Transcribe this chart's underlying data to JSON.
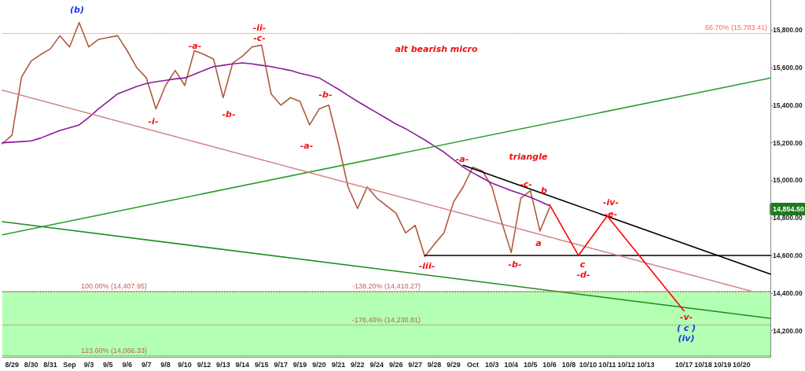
{
  "chart_data": {
    "type": "line",
    "categories": [
      null,
      "8/29",
      null,
      "8/30",
      null,
      "8/31",
      null,
      "Sep",
      null,
      "9/3",
      null,
      "9/5",
      null,
      "9/6",
      null,
      "9/7",
      null,
      "9/8",
      null,
      "9/10",
      null,
      "9/12",
      null,
      "9/13",
      null,
      "9/14",
      null,
      "9/15",
      null,
      "9/17",
      null,
      "9/19",
      null,
      "9/20",
      null,
      "9/21",
      null,
      "9/22",
      null,
      "9/24",
      null,
      "9/26",
      null,
      "9/27",
      null,
      "9/28",
      null,
      "9/29",
      null,
      "Oct",
      null,
      "10/3",
      null,
      "10/4",
      null,
      "10/5",
      null,
      "10/6",
      null,
      "10/8",
      null,
      "10/10",
      null,
      "10/11",
      null,
      "10/12",
      null,
      "10/13",
      null,
      null,
      null,
      "10/17",
      null,
      "10/18",
      null,
      "10/19",
      null,
      "10/20",
      null,
      null,
      null
    ],
    "ylim": [
      14060,
      15960
    ],
    "yticks": [
      {
        "value": 14200,
        "label": "14,200.00"
      },
      {
        "value": 14400,
        "label": "14,400.00"
      },
      {
        "value": 14600,
        "label": "14,600.00"
      },
      {
        "value": 14800,
        "label": "14,800.00"
      },
      {
        "value": 15000,
        "label": "15,000.00"
      },
      {
        "value": 15200,
        "label": "15,200.00"
      },
      {
        "value": 15400,
        "label": "15,400.00"
      },
      {
        "value": 15600,
        "label": "15,600.00"
      },
      {
        "value": 15800,
        "label": "15,800.00"
      }
    ],
    "grid": false,
    "marker": "none",
    "series": [
      {
        "color": "#b05a3c",
        "values": [
          15195,
          15240,
          15550,
          15635,
          15670,
          15700,
          15770,
          15710,
          15840,
          15710,
          15750,
          15760,
          15770,
          15690,
          15600,
          15545,
          15380,
          15505,
          15585,
          15505,
          15690,
          15670,
          15645,
          15440,
          15625,
          15660,
          15710,
          15720,
          15460,
          15400,
          15440,
          15420,
          15295,
          15380,
          15400,
          15195,
          14965,
          14850,
          14965,
          14905,
          14865,
          14825,
          14720,
          14760,
          14595,
          14660,
          14720,
          14885,
          14965,
          15070,
          15050,
          14965,
          14780,
          14615,
          14905,
          14945,
          14730,
          14855,
          null,
          null,
          null,
          null,
          null,
          null,
          null,
          null,
          null,
          null,
          null,
          null,
          null,
          null,
          null,
          null,
          null,
          null,
          null,
          null,
          null,
          null,
          null
        ]
      },
      {
        "color": "#8b1a9b",
        "values": [
          15200,
          15203,
          15206,
          15210,
          15225,
          15245,
          15265,
          15280,
          15295,
          15335,
          15380,
          15420,
          15460,
          15480,
          15500,
          15515,
          15525,
          15532,
          15540,
          15545,
          15565,
          15585,
          15605,
          15612,
          15620,
          15625,
          15620,
          15612,
          15605,
          15595,
          15585,
          15570,
          15558,
          15545,
          15515,
          15485,
          15452,
          15420,
          15390,
          15360,
          15330,
          15300,
          15275,
          15245,
          15215,
          15182,
          15150,
          15110,
          15070,
          15040,
          15012,
          14985,
          14965,
          14945,
          14928,
          14910,
          14888,
          14865,
          null,
          null,
          null,
          null,
          null,
          null,
          null,
          null,
          null,
          null,
          null,
          null,
          null,
          null,
          null,
          null,
          null,
          null,
          null,
          null,
          null,
          null,
          null
        ]
      },
      {
        "color": "#2e9e2e",
        "values": [
          14710,
          null,
          null,
          null,
          null,
          null,
          null,
          null,
          null,
          null,
          null,
          null,
          null,
          null,
          null,
          null,
          null,
          null,
          null,
          null,
          null,
          null,
          null,
          null,
          null,
          null,
          null,
          null,
          null,
          null,
          null,
          null,
          null,
          null,
          null,
          null,
          null,
          null,
          null,
          null,
          null,
          null,
          null,
          null,
          null,
          null,
          null,
          null,
          null,
          null,
          null,
          null,
          null,
          null,
          null,
          null,
          null,
          null,
          null,
          null,
          null,
          null,
          null,
          null,
          null,
          null,
          null,
          null,
          null,
          null,
          null,
          null,
          null,
          null,
          null,
          null,
          null,
          null,
          null,
          null,
          15545
        ]
      },
      {
        "color": "#1e8c1e",
        "values": [
          14780,
          null,
          null,
          null,
          null,
          null,
          null,
          null,
          null,
          null,
          null,
          null,
          null,
          null,
          null,
          null,
          null,
          null,
          null,
          null,
          null,
          null,
          null,
          null,
          null,
          null,
          null,
          null,
          null,
          null,
          null,
          null,
          null,
          null,
          null,
          null,
          null,
          null,
          null,
          null,
          null,
          null,
          null,
          null,
          null,
          null,
          null,
          null,
          null,
          null,
          null,
          null,
          null,
          null,
          null,
          null,
          null,
          null,
          null,
          null,
          null,
          null,
          null,
          null,
          null,
          null,
          null,
          null,
          null,
          null,
          null,
          null,
          null,
          null,
          null,
          null,
          null,
          null,
          null,
          null,
          14265
        ]
      },
      {
        "color": "#000000",
        "values": [
          null,
          null,
          null,
          null,
          null,
          null,
          null,
          null,
          null,
          null,
          null,
          null,
          null,
          null,
          null,
          null,
          null,
          null,
          null,
          null,
          null,
          null,
          null,
          null,
          null,
          null,
          null,
          null,
          null,
          null,
          null,
          null,
          null,
          null,
          null,
          null,
          null,
          null,
          null,
          null,
          null,
          null,
          null,
          null,
          null,
          null,
          null,
          null,
          15080,
          null,
          null,
          null,
          null,
          null,
          null,
          null,
          null,
          null,
          null,
          null,
          null,
          null,
          null,
          null,
          null,
          null,
          null,
          null,
          null,
          null,
          null,
          null,
          null,
          null,
          null,
          null,
          null,
          null,
          null,
          null,
          14500
        ]
      },
      {
        "color": "#000000",
        "values": [
          null,
          null,
          null,
          null,
          null,
          null,
          null,
          null,
          null,
          null,
          null,
          null,
          null,
          null,
          null,
          null,
          null,
          null,
          null,
          null,
          null,
          null,
          null,
          null,
          null,
          null,
          null,
          null,
          null,
          null,
          null,
          null,
          null,
          null,
          null,
          null,
          null,
          null,
          null,
          null,
          null,
          null,
          null,
          null,
          14600,
          null,
          null,
          null,
          null,
          null,
          null,
          null,
          null,
          null,
          null,
          null,
          null,
          null,
          null,
          null,
          null,
          null,
          null,
          null,
          null,
          null,
          null,
          null,
          null,
          null,
          null,
          null,
          null,
          null,
          null,
          null,
          null,
          null,
          null,
          null,
          14600
        ]
      },
      {
        "color": "#d08080",
        "line_style": "dotted",
        "values": [
          15480,
          null,
          null,
          null,
          null,
          null,
          null,
          null,
          null,
          null,
          null,
          null,
          null,
          null,
          null,
          null,
          null,
          null,
          null,
          null,
          null,
          null,
          null,
          null,
          null,
          null,
          null,
          null,
          null,
          null,
          null,
          null,
          null,
          null,
          null,
          null,
          null,
          null,
          null,
          null,
          null,
          null,
          null,
          null,
          null,
          null,
          null,
          null,
          null,
          null,
          null,
          null,
          null,
          null,
          null,
          null,
          null,
          null,
          null,
          null,
          null,
          null,
          null,
          null,
          null,
          null,
          null,
          null,
          null,
          null,
          null,
          null,
          null,
          null,
          null,
          null,
          null,
          null,
          14410,
          null,
          null
        ]
      },
      {
        "color": "#ff0000",
        "values": [
          null,
          null,
          null,
          null,
          null,
          null,
          null,
          null,
          null,
          null,
          null,
          null,
          null,
          null,
          null,
          null,
          null,
          null,
          null,
          null,
          null,
          null,
          null,
          null,
          null,
          null,
          null,
          null,
          null,
          null,
          null,
          null,
          null,
          null,
          null,
          null,
          null,
          null,
          null,
          null,
          null,
          null,
          null,
          null,
          null,
          null,
          null,
          null,
          null,
          null,
          null,
          null,
          null,
          null,
          null,
          null,
          null,
          14870,
          null,
          null,
          14600,
          null,
          null,
          14810,
          null,
          null,
          null,
          null,
          null,
          null,
          null,
          14305,
          null,
          null,
          null,
          null,
          null,
          null,
          null,
          null,
          null
        ]
      }
    ],
    "ref_lines": [
      {
        "axis": "y",
        "value": 15783.41,
        "label": "66.70% (15,783.41)",
        "color": "#ff6666",
        "line_style": "dotted"
      },
      {
        "axis": "y",
        "value": 14407.95,
        "label": "100.00% (14,407.95)",
        "color": "#c06060",
        "line_style": "dotted"
      },
      {
        "axis": "y",
        "value": 14410.27,
        "label": "-138.20% (14,410.27)",
        "color": "#c06060",
        "line_style": "dotted"
      },
      {
        "axis": "y",
        "value": 14230.81,
        "label": "-176.40% (14,230.81)",
        "color": "#c06060",
        "line_style": "dotted"
      },
      {
        "axis": "y",
        "value": 14066.33,
        "label": "123.60% (14,066.33)",
        "color": "#c06060",
        "line_style": "dotted"
      }
    ],
    "bands": [
      {
        "axis": "y",
        "from": 14060,
        "to": 14407.95,
        "color": "#b3ffb3"
      }
    ],
    "annotations": [
      "(b)",
      "-i-",
      "-a-",
      "-b-",
      "-ii-",
      "-c-",
      "-a-",
      "-b-",
      "alt bearish micro",
      "-iii-",
      "-a-",
      "triangle",
      "-c-",
      "b",
      "a",
      "-b-",
      "c",
      "-d-",
      "-iv-",
      "-e-",
      "-v-",
      "( c )",
      "(iv)",
      "14,854.50"
    ]
  }
}
